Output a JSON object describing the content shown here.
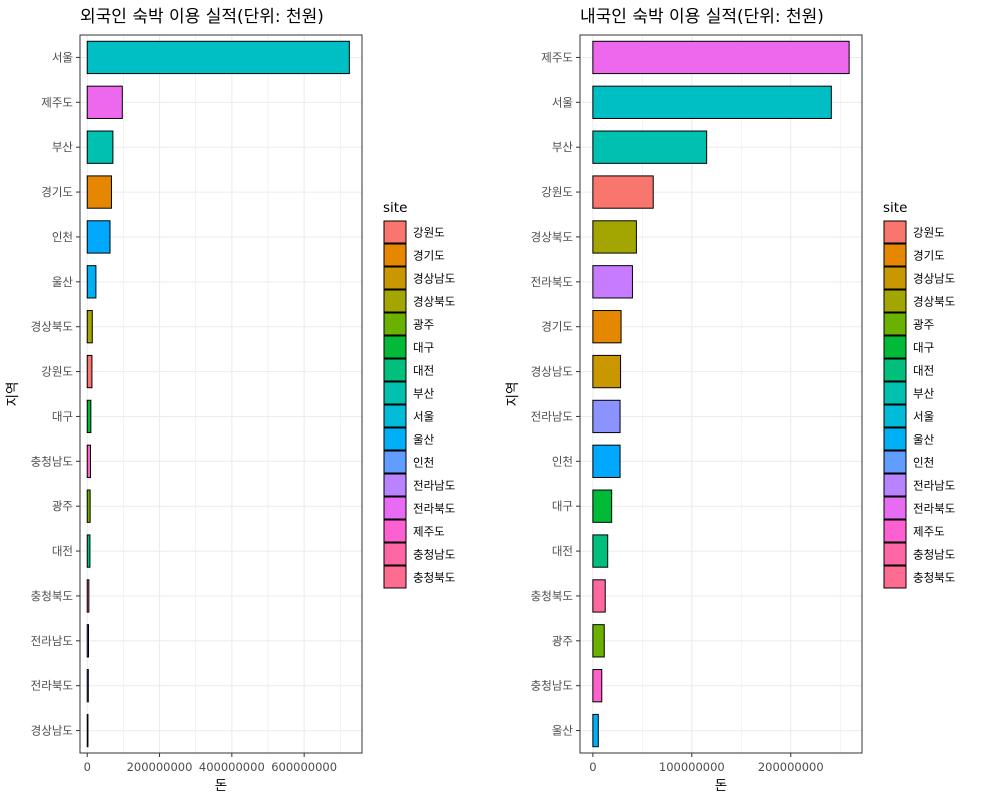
{
  "chart_data": [
    {
      "type": "bar",
      "orientation": "horizontal",
      "title": "외국인 숙박 이용 실적(단위: 천원)",
      "xlabel": "돈",
      "ylabel": "지역",
      "xlim": [
        -20000000,
        760000000
      ],
      "xticks": [
        0,
        200000000,
        400000000,
        600000000
      ],
      "xtick_labels": [
        "0",
        "200000000",
        "400000000",
        "600000000"
      ],
      "grid": true,
      "legend_position": "right",
      "categories": [
        "서울",
        "제주도",
        "부산",
        "경기도",
        "인천",
        "울산",
        "경상북도",
        "강원도",
        "대구",
        "충청남도",
        "광주",
        "대전",
        "충청북도",
        "전라남도",
        "전라북도",
        "경상남도"
      ],
      "values": [
        725000000,
        97000000,
        71000000,
        67000000,
        63000000,
        24000000,
        14000000,
        13000000,
        10000000,
        9000000,
        8000000,
        7500000,
        4500000,
        3500000,
        3000000,
        2000000
      ]
    },
    {
      "type": "bar",
      "orientation": "horizontal",
      "title": "내국인 숙박 이용 실적(단위: 천원)",
      "xlabel": "돈",
      "ylabel": "지역",
      "xlim": [
        -13000000,
        272000000
      ],
      "xticks": [
        0,
        100000000,
        200000000
      ],
      "xtick_labels": [
        "0",
        "100000000",
        "200000000"
      ],
      "grid": true,
      "legend_position": "right",
      "categories": [
        "제주도",
        "서울",
        "부산",
        "강원도",
        "경상북도",
        "전라북도",
        "경기도",
        "경상남도",
        "전라남도",
        "인천",
        "대구",
        "대전",
        "충청북도",
        "광주",
        "충청남도",
        "울산"
      ],
      "values": [
        259000000,
        241000000,
        115000000,
        61000000,
        44000000,
        40000000,
        28500000,
        28000000,
        27500000,
        27500000,
        19000000,
        15000000,
        12500000,
        11500000,
        9000000,
        5500000
      ]
    }
  ],
  "legend": {
    "title": "site",
    "items": [
      {
        "label": "강원도",
        "color": "#F8766D"
      },
      {
        "label": "경기도",
        "color": "#E58700"
      },
      {
        "label": "경상남도",
        "color": "#C99800"
      },
      {
        "label": "경상북도",
        "color": "#A3A500"
      },
      {
        "label": "광주",
        "color": "#6BB100"
      },
      {
        "label": "대구",
        "color": "#00BA38"
      },
      {
        "label": "대전",
        "color": "#00BF7D"
      },
      {
        "label": "부산",
        "color": "#00C0AF"
      },
      {
        "label": "서울",
        "color": "#00BCD8"
      },
      {
        "label": "울산",
        "color": "#00B0F6"
      },
      {
        "label": "인천",
        "color": "#619CFF"
      },
      {
        "label": "전라남도",
        "color": "#B983FF"
      },
      {
        "label": "전라북도",
        "color": "#E76BF3"
      },
      {
        "label": "제주도",
        "color": "#FD61D1"
      },
      {
        "label": "충청남도",
        "color": "#FF67A4"
      },
      {
        "label": "충청북도",
        "color": "#FF6C91"
      }
    ]
  },
  "fill_colors": {
    "강원도": "#F8766D",
    "경기도": "#E58700",
    "경상남도": "#C99800",
    "경상북도": "#A3A500",
    "광주": "#6BB100",
    "대구": "#00BA38",
    "대전": "#00BF7D",
    "부산": "#00C0AF",
    "서울": "#00BFC4",
    "울산": "#00B0F6",
    "인천": "#00A9FF",
    "전라남도": "#8B93FF",
    "전라북도": "#C77CFF",
    "제주도": "#ED68ED",
    "충청남도": "#FF61CC",
    "충청북도": "#FF689E"
  }
}
